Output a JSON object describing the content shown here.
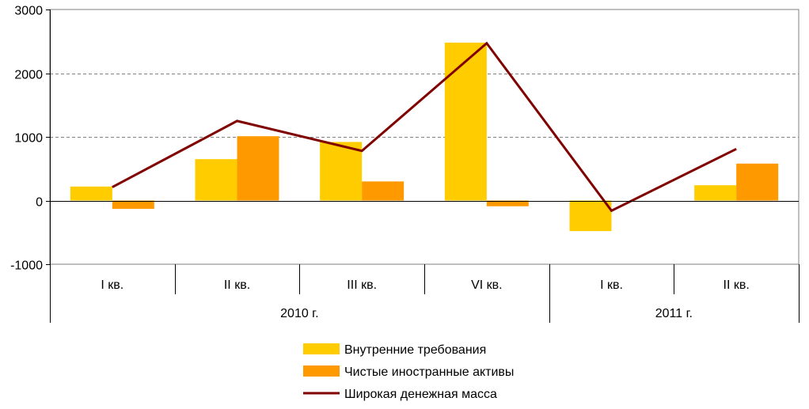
{
  "chart_data": {
    "type": "bar",
    "categories": [
      "I кв.",
      "II кв.",
      "III кв.",
      "VI кв.",
      "I кв.",
      "II кв."
    ],
    "groups": [
      {
        "label": "2010 г.",
        "span": [
          0,
          3
        ]
      },
      {
        "label": "2011 г.",
        "span": [
          4,
          5
        ]
      }
    ],
    "series": [
      {
        "name": "Внутренние требования",
        "kind": "bar",
        "color": "#FFCC00",
        "values": [
          220,
          650,
          920,
          2480,
          -480,
          240
        ]
      },
      {
        "name": "Чистые иностранные активы",
        "kind": "bar",
        "color": "#FF9900",
        "values": [
          -130,
          1010,
          300,
          -90,
          0,
          580
        ]
      },
      {
        "name": "Широкая денежная масса",
        "kind": "line",
        "color": "#800000",
        "values": [
          210,
          1250,
          780,
          2470,
          -160,
          810
        ]
      }
    ],
    "yticks": [
      "3000",
      "2000",
      "1000",
      "0",
      "-1000"
    ],
    "ylim": [
      -1000,
      3000
    ],
    "grid": true,
    "legend_position": "bottom"
  }
}
